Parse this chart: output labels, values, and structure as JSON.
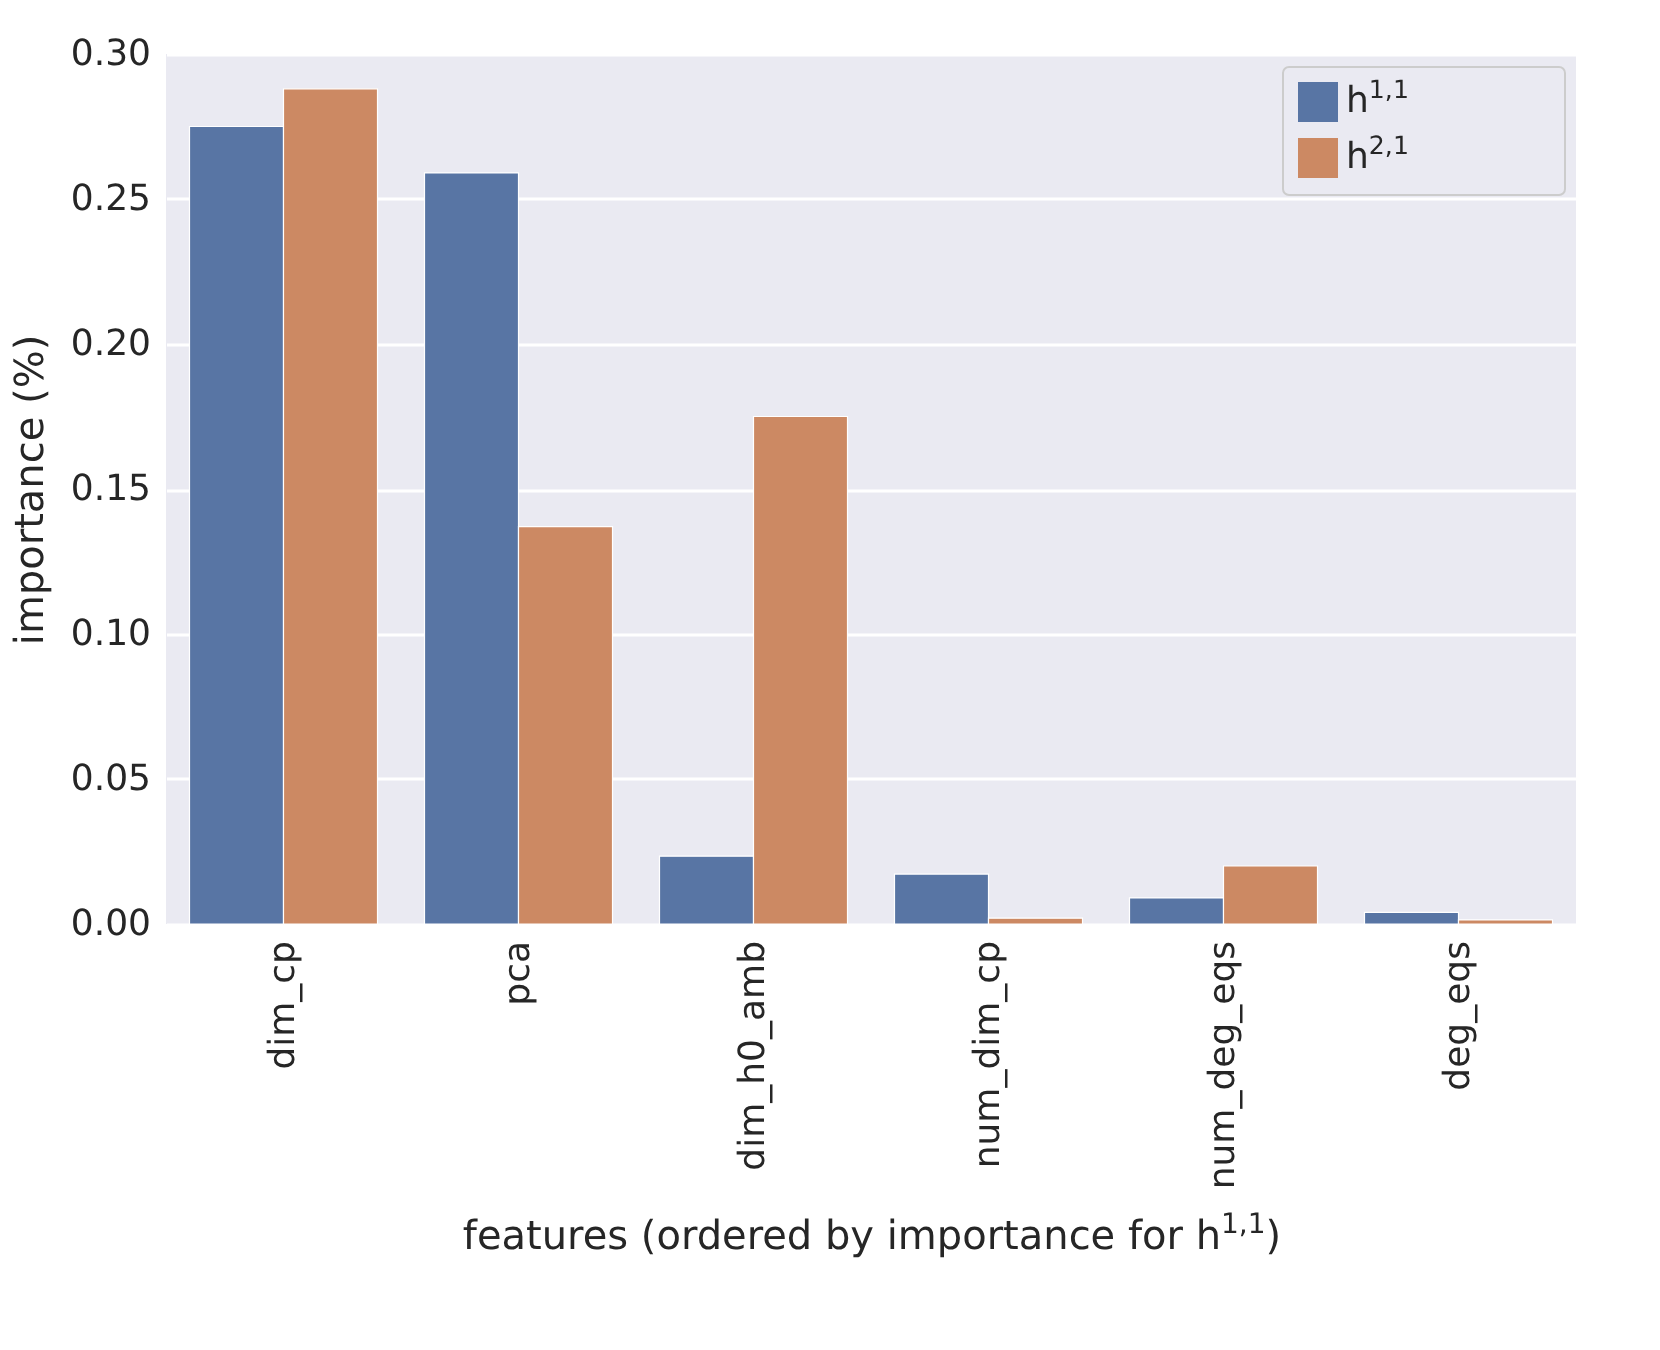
{
  "chart_data": {
    "type": "bar",
    "xlabel": "features (ordered by importance for h$^{1,1}$)",
    "ylabel": "importance (%)",
    "categories": [
      "dim_cp",
      "pca",
      "dim_h0_amb",
      "num_dim_cp",
      "num_deg_eqs",
      "deg_eqs"
    ],
    "series": [
      {
        "name": "h$^{1,1}$",
        "color": "#5875a4",
        "values": [
          0.275,
          0.259,
          0.0234,
          0.0172,
          0.009,
          0.004
        ]
      },
      {
        "name": "h$^{2,1}$",
        "color": "#cc8963",
        "values": [
          0.288,
          0.137,
          0.175,
          0.002,
          0.02,
          0.0014
        ]
      }
    ],
    "ylim": [
      0,
      0.3
    ],
    "yticks": [
      {
        "value": 0,
        "label": "0.00"
      },
      {
        "value": 0.05,
        "label": "0.05"
      },
      {
        "value": 0.1,
        "label": "0.10"
      },
      {
        "value": 0.15,
        "label": "0.15"
      },
      {
        "value": 0.2,
        "label": "0.20"
      },
      {
        "value": 0.25,
        "label": "0.25"
      },
      {
        "value": 0.3,
        "label": "0.30"
      }
    ],
    "grid": "y",
    "legend": "top right"
  }
}
